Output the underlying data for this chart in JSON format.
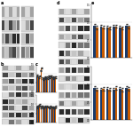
{
  "background_color": "#ffffff",
  "blue_color": "#1a3a6b",
  "orange_color": "#c85a00",
  "blot_bg": "#d4d4d4",
  "blot_band_colors": [
    "#111111",
    "#222222",
    "#444444",
    "#666666",
    "#888888",
    "#aaaaaa"
  ],
  "panel_c_top": {
    "blue_vals": [
      0.88,
      0.82,
      1.18,
      0.78,
      0.82,
      0.8,
      0.85,
      0.88,
      0.8,
      0.82
    ],
    "orange_vals": [
      0.92,
      0.88,
      1.32,
      0.72,
      0.78,
      0.76,
      0.82,
      0.85,
      0.75,
      0.8
    ],
    "n": 10,
    "ylim": [
      0.0,
      1.5
    ]
  },
  "panel_c_bot": {
    "blue_vals": [
      0.88,
      0.92,
      0.82,
      0.88,
      0.86,
      0.9,
      0.85,
      0.88,
      0.86,
      0.84
    ],
    "orange_vals": [
      0.84,
      0.98,
      0.88,
      0.82,
      0.88,
      0.86,
      0.82,
      0.86,
      0.84,
      0.88
    ],
    "n": 10,
    "ylim": [
      0.0,
      1.5
    ]
  },
  "panel_e_top": {
    "blue_vals": [
      0.9,
      0.88,
      0.86,
      0.88,
      0.86,
      0.9
    ],
    "orange_vals": [
      0.85,
      0.86,
      0.84,
      0.88,
      0.84,
      0.87
    ],
    "n": 6,
    "ylim": [
      0.0,
      1.5
    ]
  },
  "panel_e_bot": {
    "blue_vals": [
      0.9,
      0.86,
      0.88,
      0.86,
      0.88,
      0.9
    ],
    "orange_vals": [
      0.86,
      0.88,
      0.86,
      0.9,
      0.85,
      0.88
    ],
    "n": 6,
    "ylim": [
      0.0,
      1.5
    ]
  }
}
